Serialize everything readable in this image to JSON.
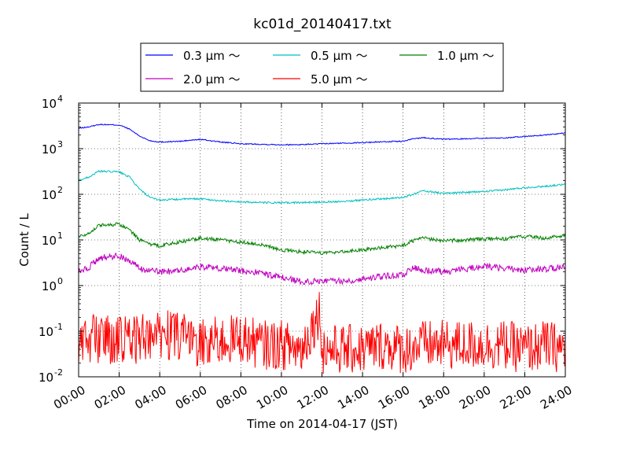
{
  "chart_data": {
    "type": "line",
    "title": "kc01d_20140417.txt",
    "xlabel": "Time on 2014-04-17 (JST)",
    "ylabel": "Count / L",
    "xlim": [
      "00:00",
      "24:00"
    ],
    "ylim": [
      0.01,
      10000
    ],
    "yscale": "log",
    "grid": true,
    "legend_position": "top, above plot",
    "x_ticks": [
      "00:00",
      "02:00",
      "04:00",
      "06:00",
      "08:00",
      "10:00",
      "12:00",
      "14:00",
      "16:00",
      "18:00",
      "20:00",
      "22:00",
      "24:00"
    ],
    "y_ticks": [
      {
        "base": "10",
        "exp": "-2"
      },
      {
        "base": "10",
        "exp": "-1"
      },
      {
        "base": "10",
        "exp": "0"
      },
      {
        "base": "10",
        "exp": "1"
      },
      {
        "base": "10",
        "exp": "2"
      },
      {
        "base": "10",
        "exp": "3"
      },
      {
        "base": "10",
        "exp": "4"
      }
    ],
    "series": [
      {
        "name": "0.3 μm ～",
        "color": "#0000ff",
        "x": [
          0,
          0.5,
          1,
          2,
          2.5,
          3,
          3.5,
          4,
          5,
          6,
          7,
          8,
          9,
          10,
          11,
          12,
          13,
          14,
          15,
          16,
          16.5,
          17,
          18,
          19,
          20,
          21,
          22,
          23,
          24
        ],
        "y": [
          2800,
          3000,
          3400,
          3300,
          2700,
          1900,
          1500,
          1400,
          1450,
          1600,
          1400,
          1280,
          1250,
          1220,
          1230,
          1280,
          1320,
          1360,
          1420,
          1450,
          1650,
          1750,
          1600,
          1650,
          1700,
          1720,
          1850,
          2000,
          2200
        ]
      },
      {
        "name": "0.5 μm ～",
        "color": "#00bfbf",
        "x": [
          0,
          0.5,
          1,
          2,
          2.5,
          3,
          3.5,
          4,
          5,
          6,
          7,
          8,
          9,
          10,
          11,
          12,
          13,
          14,
          15,
          16,
          16.5,
          17,
          18,
          19,
          20,
          21,
          22,
          23,
          24
        ],
        "y": [
          200,
          240,
          320,
          310,
          240,
          130,
          85,
          75,
          78,
          80,
          72,
          68,
          66,
          65,
          66,
          68,
          70,
          75,
          80,
          85,
          100,
          120,
          105,
          110,
          115,
          125,
          140,
          150,
          165
        ]
      },
      {
        "name": "1.0 μm ～",
        "color": "#008000",
        "x": [
          0,
          0.5,
          1,
          2,
          2.5,
          3,
          3.5,
          4,
          5,
          6,
          7,
          8,
          9,
          10,
          11,
          12,
          13,
          14,
          15,
          16,
          16.5,
          17,
          18,
          19,
          20,
          21,
          22,
          23,
          24
        ],
        "y": [
          12,
          14,
          21,
          22,
          17,
          10,
          8,
          7.5,
          9,
          11,
          10,
          9,
          8,
          6,
          5.5,
          5.2,
          5.5,
          6,
          6.8,
          7.5,
          9.5,
          11,
          9.5,
          10,
          10.5,
          10.5,
          12,
          11,
          12.5
        ]
      },
      {
        "name": "2.0 μm ～",
        "color": "#bf00bf",
        "x": [
          0,
          0.5,
          1,
          2,
          2.5,
          3,
          3.5,
          4,
          5,
          6,
          7,
          8,
          9,
          10,
          11,
          12,
          13,
          14,
          15,
          16,
          16.5,
          17,
          18,
          19,
          20,
          21,
          22,
          23,
          24
        ],
        "y": [
          2,
          2.5,
          4,
          4.5,
          3.5,
          2.4,
          2.1,
          2,
          2.1,
          2.6,
          2.4,
          2.1,
          1.9,
          1.5,
          1.2,
          1.3,
          1.25,
          1.4,
          1.6,
          1.7,
          2.5,
          2.2,
          2,
          2.3,
          2.6,
          2.4,
          2.2,
          2.3,
          2.5
        ]
      },
      {
        "name": "5.0 μm ～",
        "color": "#ff0000",
        "x": [
          0,
          1,
          2,
          3,
          4,
          5,
          6,
          7,
          8,
          9,
          10,
          11,
          11.9,
          12,
          13,
          14,
          15,
          16,
          17,
          18,
          19,
          20,
          21,
          22,
          23,
          24
        ],
        "y": [
          0.06,
          0.07,
          0.06,
          0.07,
          0.09,
          0.07,
          0.06,
          0.06,
          0.07,
          0.05,
          0.05,
          0.04,
          0.28,
          0.04,
          0.04,
          0.04,
          0.05,
          0.04,
          0.05,
          0.05,
          0.05,
          0.05,
          0.05,
          0.04,
          0.05,
          0.04
        ]
      }
    ]
  }
}
